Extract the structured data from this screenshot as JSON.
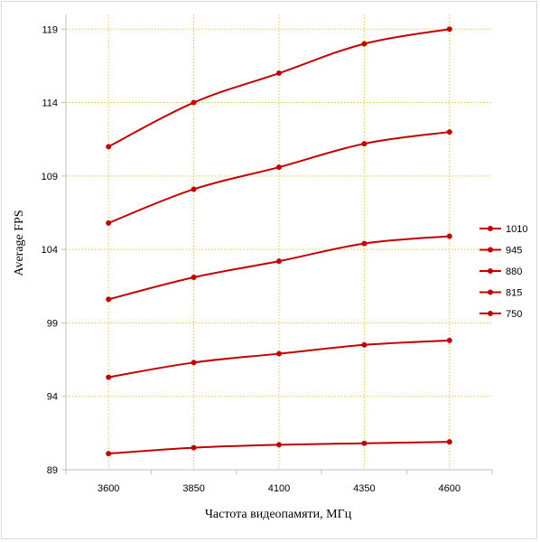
{
  "chart_data": {
    "type": "line",
    "title": "",
    "xlabel": "Частота видеопамяти, МГц",
    "ylabel": "Average FPS",
    "categories": [
      "3600",
      "3850",
      "4100",
      "4350",
      "4600"
    ],
    "ylim": [
      89,
      120
    ],
    "yticks": [
      89,
      94,
      99,
      104,
      109,
      114,
      119
    ],
    "grid": "dotted vertical and horizontal",
    "legend_position": "right",
    "series": [
      {
        "name": "1010",
        "values": [
          111.0,
          114.0,
          116.0,
          118.0,
          119.0
        ]
      },
      {
        "name": "945",
        "values": [
          105.8,
          108.1,
          109.6,
          111.2,
          112.0
        ]
      },
      {
        "name": "880",
        "values": [
          100.6,
          102.1,
          103.2,
          104.4,
          104.9
        ]
      },
      {
        "name": "815",
        "values": [
          95.3,
          96.3,
          96.9,
          97.5,
          97.8
        ]
      },
      {
        "name": "750",
        "values": [
          90.1,
          90.5,
          90.7,
          90.8,
          90.9
        ]
      }
    ],
    "colors": {
      "line": "#c00000",
      "grid": "#e3c24f",
      "axis": "#bfbfbf"
    }
  }
}
